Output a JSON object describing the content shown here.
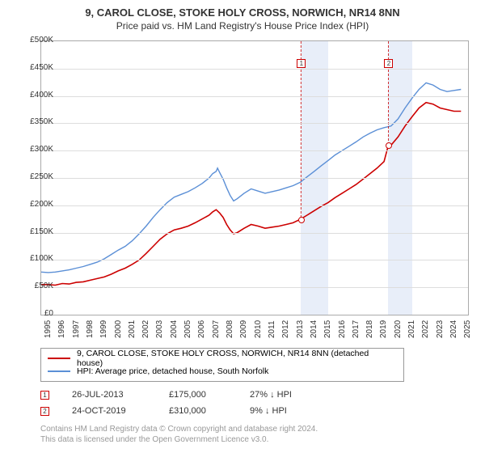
{
  "title": "9, CAROL CLOSE, STOKE HOLY CROSS, NORWICH, NR14 8NN",
  "subtitle": "Price paid vs. HM Land Registry's House Price Index (HPI)",
  "chart": {
    "type": "line",
    "x_min": 1995.0,
    "x_max": 2025.5,
    "y_min": 0,
    "y_max": 500000,
    "y_ticks": [
      0,
      50000,
      100000,
      150000,
      200000,
      250000,
      300000,
      350000,
      400000,
      450000,
      500000
    ],
    "y_tick_labels": [
      "£0",
      "£50K",
      "£100K",
      "£150K",
      "£200K",
      "£250K",
      "£300K",
      "£350K",
      "£400K",
      "£450K",
      "£500K"
    ],
    "x_ticks": [
      1995,
      1996,
      1997,
      1998,
      1999,
      2000,
      2001,
      2002,
      2003,
      2004,
      2005,
      2006,
      2007,
      2008,
      2009,
      2010,
      2011,
      2012,
      2013,
      2014,
      2015,
      2016,
      2017,
      2018,
      2019,
      2020,
      2021,
      2022,
      2023,
      2024,
      2025
    ],
    "grid_color": "#dddddd",
    "border_color": "#aaaaaa",
    "background_color": "#ffffff",
    "band_color": "#e8eef9",
    "bands": [
      {
        "from": 2013.56,
        "to": 2015.5
      },
      {
        "from": 2019.81,
        "to": 2021.5
      }
    ],
    "series": [
      {
        "id": "property",
        "color": "#cc0000",
        "width": 1.6,
        "points": [
          [
            1995.0,
            55000
          ],
          [
            1995.5,
            55000
          ],
          [
            1996.0,
            54000
          ],
          [
            1996.5,
            57000
          ],
          [
            1997.0,
            56000
          ],
          [
            1997.5,
            59000
          ],
          [
            1998.0,
            60000
          ],
          [
            1998.5,
            63000
          ],
          [
            1999.0,
            66000
          ],
          [
            1999.5,
            69000
          ],
          [
            2000.0,
            74000
          ],
          [
            2000.5,
            80000
          ],
          [
            2001.0,
            85000
          ],
          [
            2001.5,
            92000
          ],
          [
            2002.0,
            100000
          ],
          [
            2002.5,
            112000
          ],
          [
            2003.0,
            125000
          ],
          [
            2003.5,
            138000
          ],
          [
            2004.0,
            148000
          ],
          [
            2004.5,
            155000
          ],
          [
            2005.0,
            158000
          ],
          [
            2005.5,
            162000
          ],
          [
            2006.0,
            168000
          ],
          [
            2006.5,
            175000
          ],
          [
            2007.0,
            182000
          ],
          [
            2007.25,
            188000
          ],
          [
            2007.5,
            192000
          ],
          [
            2007.75,
            186000
          ],
          [
            2008.0,
            178000
          ],
          [
            2008.25,
            165000
          ],
          [
            2008.5,
            155000
          ],
          [
            2008.75,
            148000
          ],
          [
            2009.0,
            150000
          ],
          [
            2009.5,
            158000
          ],
          [
            2010.0,
            165000
          ],
          [
            2010.5,
            162000
          ],
          [
            2011.0,
            158000
          ],
          [
            2011.5,
            160000
          ],
          [
            2012.0,
            162000
          ],
          [
            2012.5,
            165000
          ],
          [
            2013.0,
            168000
          ],
          [
            2013.56,
            175000
          ],
          [
            2014.0,
            182000
          ],
          [
            2014.5,
            190000
          ],
          [
            2015.0,
            198000
          ],
          [
            2015.5,
            205000
          ],
          [
            2016.0,
            214000
          ],
          [
            2016.5,
            222000
          ],
          [
            2017.0,
            230000
          ],
          [
            2017.5,
            238000
          ],
          [
            2018.0,
            248000
          ],
          [
            2018.5,
            258000
          ],
          [
            2019.0,
            268000
          ],
          [
            2019.5,
            280000
          ],
          [
            2019.81,
            310000
          ],
          [
            2020.0,
            310000
          ],
          [
            2020.5,
            325000
          ],
          [
            2021.0,
            345000
          ],
          [
            2021.5,
            362000
          ],
          [
            2022.0,
            378000
          ],
          [
            2022.5,
            388000
          ],
          [
            2023.0,
            385000
          ],
          [
            2023.5,
            378000
          ],
          [
            2024.0,
            375000
          ],
          [
            2024.5,
            372000
          ],
          [
            2025.0,
            372000
          ]
        ]
      },
      {
        "id": "hpi",
        "color": "#5b8fd6",
        "width": 1.4,
        "points": [
          [
            1995.0,
            78000
          ],
          [
            1995.5,
            77000
          ],
          [
            1996.0,
            78000
          ],
          [
            1996.5,
            80000
          ],
          [
            1997.0,
            82000
          ],
          [
            1997.5,
            85000
          ],
          [
            1998.0,
            88000
          ],
          [
            1998.5,
            92000
          ],
          [
            1999.0,
            96000
          ],
          [
            1999.5,
            102000
          ],
          [
            2000.0,
            110000
          ],
          [
            2000.5,
            118000
          ],
          [
            2001.0,
            125000
          ],
          [
            2001.5,
            135000
          ],
          [
            2002.0,
            148000
          ],
          [
            2002.5,
            162000
          ],
          [
            2003.0,
            178000
          ],
          [
            2003.5,
            192000
          ],
          [
            2004.0,
            205000
          ],
          [
            2004.5,
            215000
          ],
          [
            2005.0,
            220000
          ],
          [
            2005.5,
            225000
          ],
          [
            2006.0,
            232000
          ],
          [
            2006.5,
            240000
          ],
          [
            2007.0,
            250000
          ],
          [
            2007.25,
            258000
          ],
          [
            2007.5,
            262000
          ],
          [
            2007.6,
            268000
          ],
          [
            2007.75,
            260000
          ],
          [
            2008.0,
            248000
          ],
          [
            2008.25,
            232000
          ],
          [
            2008.5,
            218000
          ],
          [
            2008.75,
            208000
          ],
          [
            2009.0,
            212000
          ],
          [
            2009.5,
            222000
          ],
          [
            2010.0,
            230000
          ],
          [
            2010.5,
            226000
          ],
          [
            2011.0,
            222000
          ],
          [
            2011.5,
            225000
          ],
          [
            2012.0,
            228000
          ],
          [
            2012.5,
            232000
          ],
          [
            2013.0,
            236000
          ],
          [
            2013.5,
            242000
          ],
          [
            2014.0,
            252000
          ],
          [
            2014.5,
            262000
          ],
          [
            2015.0,
            272000
          ],
          [
            2015.5,
            282000
          ],
          [
            2016.0,
            292000
          ],
          [
            2016.5,
            300000
          ],
          [
            2017.0,
            308000
          ],
          [
            2017.5,
            316000
          ],
          [
            2018.0,
            325000
          ],
          [
            2018.5,
            332000
          ],
          [
            2019.0,
            338000
          ],
          [
            2019.5,
            342000
          ],
          [
            2020.0,
            345000
          ],
          [
            2020.5,
            358000
          ],
          [
            2021.0,
            378000
          ],
          [
            2021.5,
            396000
          ],
          [
            2022.0,
            412000
          ],
          [
            2022.5,
            424000
          ],
          [
            2023.0,
            420000
          ],
          [
            2023.5,
            412000
          ],
          [
            2024.0,
            408000
          ],
          [
            2024.5,
            410000
          ],
          [
            2025.0,
            412000
          ]
        ]
      }
    ],
    "sale_markers": [
      {
        "n": "1",
        "x": 2013.56,
        "y": 175000,
        "label_y": 468000
      },
      {
        "n": "2",
        "x": 2019.81,
        "y": 310000,
        "label_y": 468000
      }
    ]
  },
  "legend": {
    "items": [
      {
        "color": "#cc0000",
        "label": "9, CAROL CLOSE, STOKE HOLY CROSS, NORWICH, NR14 8NN (detached house)"
      },
      {
        "color": "#5b8fd6",
        "label": "HPI: Average price, detached house, South Norfolk"
      }
    ]
  },
  "sales": [
    {
      "n": "1",
      "date": "26-JUL-2013",
      "price": "£175,000",
      "delta": "27% ↓ HPI"
    },
    {
      "n": "2",
      "date": "24-OCT-2019",
      "price": "£310,000",
      "delta": "9% ↓ HPI"
    }
  ],
  "footer1": "Contains HM Land Registry data © Crown copyright and database right 2024.",
  "footer2": "This data is licensed under the Open Government Licence v3.0."
}
